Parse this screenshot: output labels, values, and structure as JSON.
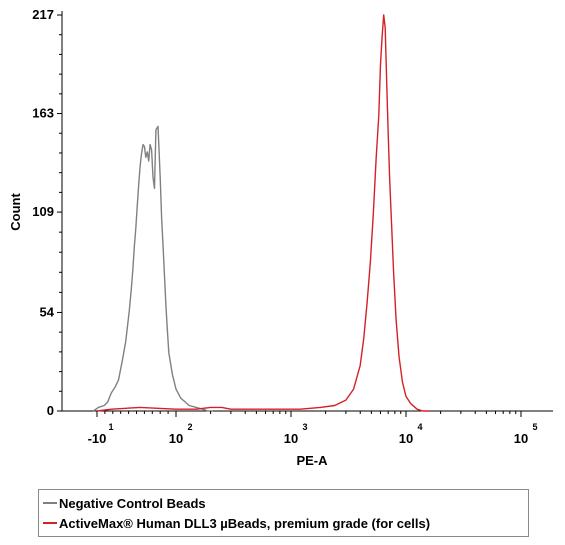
{
  "chart_data": {
    "type": "line",
    "xlabel": "PE-A",
    "ylabel": "Count",
    "x_scale": "biexponential",
    "xlim": [
      -10,
      100000
    ],
    "ylim": [
      0,
      217
    ],
    "x_ticks": [
      {
        "base": "-10",
        "exp": "1"
      },
      {
        "base": "10",
        "exp": "2"
      },
      {
        "base": "10",
        "exp": "3"
      },
      {
        "base": "10",
        "exp": "4"
      },
      {
        "base": "10",
        "exp": "5"
      }
    ],
    "y_ticks": [
      "0",
      "54",
      "109",
      "163",
      "217"
    ],
    "grid": false,
    "legend_position": "below",
    "series": [
      {
        "name": "Negative Control Beads",
        "color": "#808080",
        "x": [
          -15,
          -8,
          0,
          5,
          8,
          10,
          15,
          20,
          25,
          30,
          35,
          38,
          40,
          42,
          44,
          46,
          48,
          50,
          52,
          54,
          56,
          58,
          60,
          62,
          64,
          66,
          68,
          70,
          72,
          75,
          78,
          80,
          82,
          84,
          86,
          88,
          90,
          95,
          100,
          110,
          120,
          130,
          150,
          170,
          190,
          210
        ],
        "values": [
          0,
          2,
          3,
          5,
          8,
          10,
          13,
          17,
          27,
          38,
          55,
          68,
          78,
          90,
          100,
          112,
          124,
          134,
          141,
          146,
          145,
          139,
          142,
          137,
          146,
          143,
          128,
          122,
          154,
          156,
          128,
          106,
          90,
          74,
          58,
          44,
          32,
          20,
          12,
          7,
          5,
          3,
          2,
          1,
          0,
          0
        ]
      },
      {
        "name": "ActiveMax® Human DLL3 µBeads, premium grade (for cells)",
        "color": "#d42127",
        "x": [
          -10,
          10,
          50,
          100,
          150,
          200,
          250,
          300,
          400,
          600,
          900,
          1200,
          1800,
          2400,
          3000,
          3500,
          4000,
          4300,
          4600,
          4900,
          5200,
          5500,
          5800,
          6000,
          6200,
          6400,
          6600,
          6800,
          7000,
          7200,
          7500,
          7800,
          8200,
          8700,
          9300,
          10000,
          11000,
          12500,
          14000,
          16000
        ],
        "values": [
          0,
          1,
          2,
          1,
          1,
          2,
          2,
          1,
          1,
          1,
          1,
          1,
          2,
          3,
          6,
          12,
          25,
          40,
          60,
          82,
          108,
          138,
          162,
          190,
          205,
          217,
          210,
          180,
          152,
          128,
          102,
          76,
          50,
          30,
          16,
          8,
          4,
          1,
          0,
          0
        ]
      }
    ]
  }
}
